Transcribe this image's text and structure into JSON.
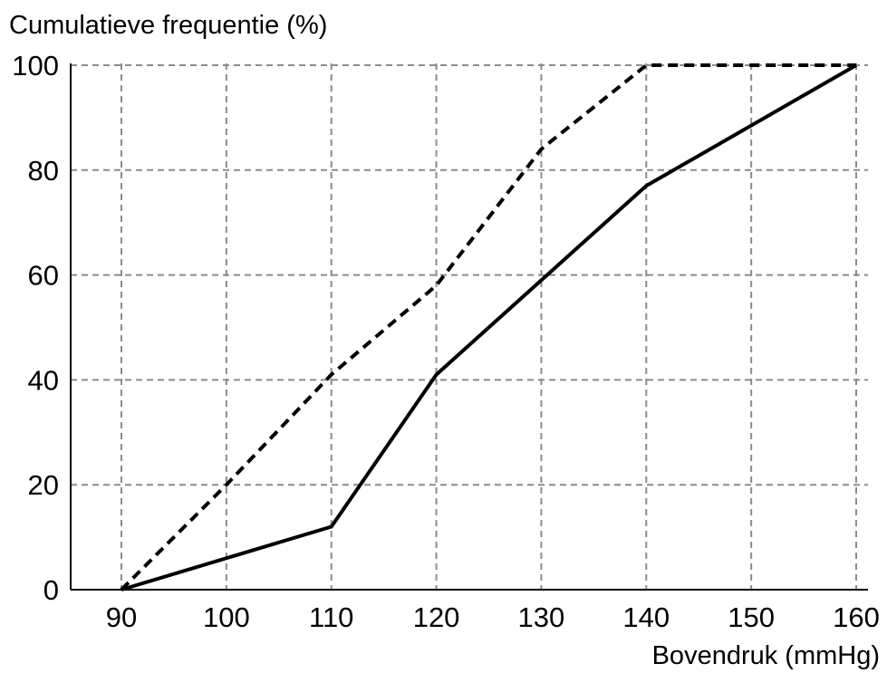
{
  "chart_data": {
    "type": "line",
    "title": "",
    "ylabel": "Cumulatieve frequentie (%)",
    "xlabel": "Bovendruk (mmHg)",
    "xlim": [
      90,
      160
    ],
    "ylim": [
      0,
      100
    ],
    "x_ticks": [
      90,
      100,
      110,
      120,
      130,
      140,
      150,
      160
    ],
    "y_ticks": [
      0,
      20,
      40,
      60,
      80,
      100
    ],
    "grid": true,
    "series": [
      {
        "style": "solid",
        "x": [
          90,
          110,
          120,
          130,
          140,
          160
        ],
        "y": [
          0,
          12,
          41,
          59,
          77,
          100
        ]
      },
      {
        "style": "dashed",
        "x": [
          90,
          100,
          110,
          120,
          130,
          140,
          160
        ],
        "y": [
          0,
          20,
          41,
          58,
          84,
          100,
          100
        ]
      }
    ]
  }
}
